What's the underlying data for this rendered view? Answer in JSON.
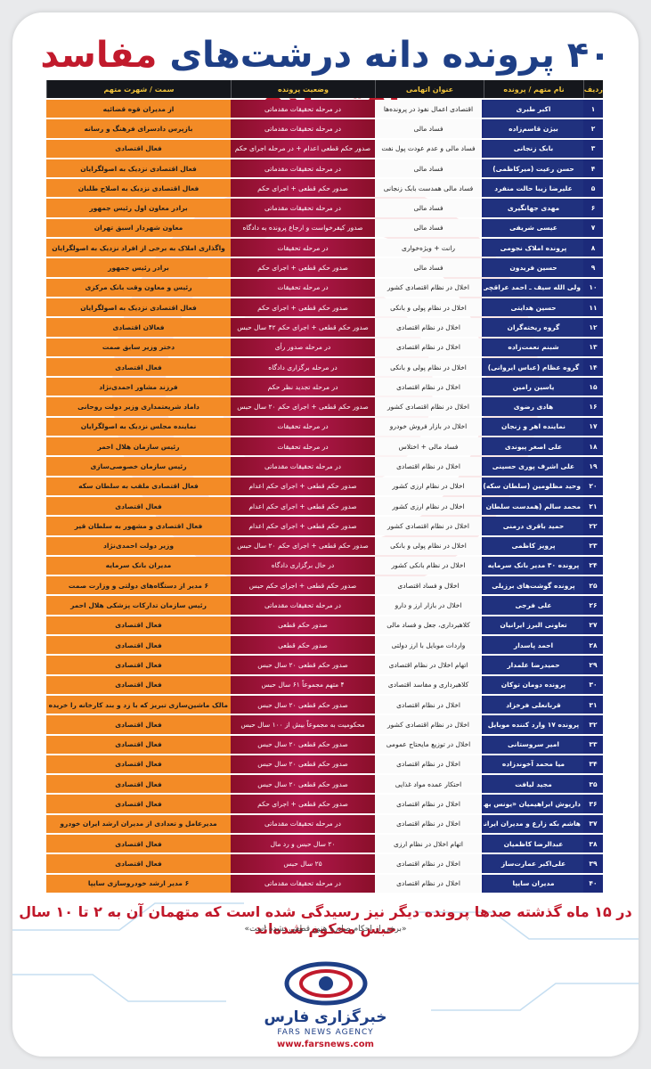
{
  "title": {
    "number": "۴۰",
    "part1": "پرونده دانه درشت‌های",
    "part2": "مفاسد اقتصادی"
  },
  "headers": [
    "ردیف",
    "نام متهم / پرونده",
    "عنوان اتهامی",
    "وضعیت پرونده",
    "سمت / شهرت متهم"
  ],
  "rows": [
    [
      "۱",
      "اکبر طبری",
      "اقتصادی اعمال نفوذ در پرونده‌ها",
      "در مرحله تحقیقات مقدماتی",
      "از مدیران قوه قضائیه"
    ],
    [
      "۲",
      "بیژن قاسم‌زاده",
      "فساد مالی",
      "در مرحله تحقیقات مقدماتی",
      "بازپرس دادسرای فرهنگ و رسانه"
    ],
    [
      "۳",
      "بابک زنجانی",
      "فساد مالی و عدم عودت پول نفت",
      "صدور حکم قطعی اعدام + در مرحله اجرای حکم",
      "فعال اقتصادی"
    ],
    [
      "۴",
      "حسن رعیت (میرکاظمی)",
      "فساد مالی",
      "در مرحله تحقیقات مقدماتی",
      "فعال اقتصادی نزدیک به اصولگرایان"
    ],
    [
      "۵",
      "علیرضا زیبا حالت منفرد",
      "فساد مالی همدست بابک زنجانی",
      "صدور حکم قطعی + اجرای حکم",
      "فعال اقتصادی نزدیک به اصلاح طلبان"
    ],
    [
      "۶",
      "مهدی جهانگیری",
      "فساد مالی",
      "در مرحله تحقیقات مقدماتی",
      "برادر معاون اول رئیس جمهور"
    ],
    [
      "۷",
      "عیسی شریفی",
      "فساد مالی",
      "صدور کیفرخواست و ارجاع پرونده به دادگاه",
      "معاون شهردار اسبق تهران"
    ],
    [
      "۸",
      "پرونده املاک نجومی",
      "رانت + ویژه‌خواری",
      "در مرحله تحقیقات",
      "واگذاری املاک به برخی از افراد نزدیک به اصولگرایان"
    ],
    [
      "۹",
      "حسین فریدون",
      "فساد مالی",
      "صدور حکم قطعی + اجرای حکم",
      "برادر رئیس جمهور"
    ],
    [
      "۱۰",
      "ولی الله سیف ـ احمد عراقچی",
      "اخلال در نظام اقتصادی کشور",
      "در مرحله تحقیقات",
      "رئیس و معاون وقت بانک مرکزی"
    ],
    [
      "۱۱",
      "حسین هدایتی",
      "اخلال در نظام پولی و بانکی",
      "صدور حکم قطعی + اجرای حکم",
      "فعال اقتصادی نزدیک به اصولگرایان"
    ],
    [
      "۱۲",
      "گروه ریخته‌گران",
      "اخلال در نظام اقتصادی",
      "صدور حکم قطعی + اجرای حکم ۴۲ سال حبس",
      "فعالان اقتصادی"
    ],
    [
      "۱۳",
      "شبنم نعمت‌زاده",
      "اخلال در نظام اقتصادی",
      "در مرحله صدور رأی",
      "دختر وزیر سابق صمت"
    ],
    [
      "۱۴",
      "گروه عظام (عباس ایروانی)",
      "اخلال در نظام پولی و بانکی",
      "در مرحله برگزاری دادگاه",
      "فعال اقتصادی"
    ],
    [
      "۱۵",
      "یاسین رامین",
      "اخلال در نظام اقتصادی",
      "در مرحله تجدید نظر حکم",
      "فرزند مشاور احمدی‌نژاد"
    ],
    [
      "۱۶",
      "هادی رضوی",
      "اخلال در نظام اقتصادی کشور",
      "صدور حکم قطعی + اجرای حکم ۲۰ سال حبس",
      "داماد شریعتمداری وزیر دولت روحانی"
    ],
    [
      "۱۷",
      "نماینده اهر و زنجان",
      "اخلال در بازار فروش خودرو",
      "در مرحله تحقیقات",
      "نماینده مجلس نزدیک به اصولگرایان"
    ],
    [
      "۱۸",
      "علی اصغر پیوندی",
      "فساد مالی + اختلاس",
      "در مرحله تحقیقات",
      "رئیس سازمان هلال احمر"
    ],
    [
      "۱۹",
      "علی اشرف پوری حسینی",
      "اخلال در نظام اقتصادی",
      "در مرحله تحقیقات مقدماتی",
      "رئیس سازمان خصوصی‌سازی"
    ],
    [
      "۲۰",
      "وحید مظلومین (سلطان سکه)",
      "اخلال در نظام ارزی کشور",
      "صدور حکم قطعی + اجرای حکم اعدام",
      "فعال اقتصادی ملقب به سلطان سکه"
    ],
    [
      "۲۱",
      "محمد سالم (همدست سلطان سکه)",
      "اخلال در نظام ارزی کشور",
      "صدور حکم قطعی + اجرای حکم اعدام",
      "فعال اقتصادی"
    ],
    [
      "۲۲",
      "حمید باقری درمنی",
      "اخلال در نظام اقتصادی کشور",
      "صدور حکم قطعی + اجرای حکم اعدام",
      "فعال اقتصادی و مشهور به سلطان قیر"
    ],
    [
      "۲۳",
      "پرویز کاظمی",
      "اخلال در نظام پولی و بانکی",
      "صدور حکم قطعی + اجرای حکم ۲۰ سال حبس",
      "وزیر دولت احمدی‌نژاد"
    ],
    [
      "۲۴",
      "پرونده ۳۰ مدیر بانک سرمایه",
      "اخلال در نظام بانکی کشور",
      "در حال برگزاری دادگاه",
      "مدیران بانک سرمایه"
    ],
    [
      "۲۵",
      "پرونده گوشت‌های برزیلی",
      "اخلال و فساد اقتصادی",
      "صدور حکم قطعی + اجرای حکم حبس",
      "۶ مدیر از دستگاه‌های دولتی و وزارت صمت"
    ],
    [
      "۲۶",
      "علی فرجی",
      "اخلال در بازار ارز و دارو",
      "در مرحله تحقیقات مقدماتی",
      "رئیس سازمان تدارکات پزشکی هلال احمر"
    ],
    [
      "۲۷",
      "تعاونی البرز ایرانیان",
      "کلاهبرداری، جعل و فساد مالی",
      "صدور حکم قطعی",
      "فعال اقتصادی"
    ],
    [
      "۲۸",
      "احمد پاسدار",
      "واردات موبایل با ارز دولتی",
      "صدور حکم قطعی",
      "فعال اقتصادی"
    ],
    [
      "۲۹",
      "حمیدرضا علمدار",
      "اتهام اخلال در نظام اقتصادی",
      "صدور حکم قطعی ۲۰ سال حبس",
      "فعال اقتصادی"
    ],
    [
      "۳۰",
      "پرونده دومان توکان",
      "کلاهبرداری و مفاسد اقتصادی",
      "۴ متهم مجموعاً ۶۱ سال حبس",
      "فعال اقتصادی"
    ],
    [
      "۳۱",
      "قربانعلی فرخزاد",
      "اخلال در نظام اقتصادی",
      "صدور حکم قطعی ۲۰ سال حبس",
      "مالک ماشین‌سازی تبریز که با زد و بند کارخانه را خریده بود"
    ],
    [
      "۳۲",
      "پرونده ۱۷ وارد کننده موبایل",
      "اخلال در نظام اقتصادی کشور",
      "محکومیت به مجموعاً بیش از ۱۰۰ سال حبس",
      "فعال اقتصادی"
    ],
    [
      "۳۳",
      "امیر سروستانی",
      "اخلال در توزیع مایحتاج عمومی",
      "صدور حکم قطعی ۲۰ سال حبس",
      "فعال اقتصادی"
    ],
    [
      "۳۴",
      "میا محمد آخوندزاده",
      "اخلال در نظام اقتصادی",
      "صدور حکم قطعی ۲۰ سال حبس",
      "فعال اقتصادی"
    ],
    [
      "۳۵",
      "مجید لیافت",
      "احتکار عمده مواد غذایی",
      "صدور حکم قطعی ۲۰ سال حبس",
      "فعال اقتصادی"
    ],
    [
      "۳۶",
      "داریوش ابراهیمیان «یونس بهاءالدینی»",
      "اخلال در نظام اقتصادی",
      "صدور حکم قطعی + اجرای حکم",
      "فعال اقتصادی"
    ],
    [
      "۳۷",
      "هاشم بکه زارع و مدیران ایرانخودرو",
      "اخلال در نظام اقتصادی",
      "در مرحله تحقیقات مقدماتی",
      "مدیرعامل و تعدادی از مدیران ارشد ایران خودرو"
    ],
    [
      "۳۸",
      "عبدالرضا کاظمیان",
      "اتهام اخلال در نظام ارزی",
      "۲۰ سال حبس و رد مال",
      "فعال اقتصادی"
    ],
    [
      "۳۹",
      "علی‌اکبر عمارت‌ساز",
      "اخلال در نظام اقتصادی",
      "۲۵ سال حبس",
      "فعال اقتصادی"
    ],
    [
      "۴۰",
      "مدیران سایپا",
      "اخلال در نظام اقتصادی",
      "در مرحله تحقیقات مقدماتی",
      "۶ مدیر ارشد خودروسازی سایپا"
    ]
  ],
  "footer": {
    "main": "در ۱۵ ماه گذشته صدها پرونده دیگر نیز رسیدگی شده است که متهمان آن به ۲ تا ۱۰ سال حبس محکوم شده‌اند",
    "sub": "«برخی از احکام صادره هنوز قطعی نشده است»"
  },
  "logo": {
    "fa": "خبرگزاری فارس",
    "en": "FARS NEWS AGENCY"
  },
  "url": "www.farsnews.com",
  "colors": {
    "navy": "#1c2a7a",
    "red": "#c11a2c",
    "crimson": "#a3153e",
    "orange": "#f38b26",
    "header_text": "#f2c43a"
  }
}
